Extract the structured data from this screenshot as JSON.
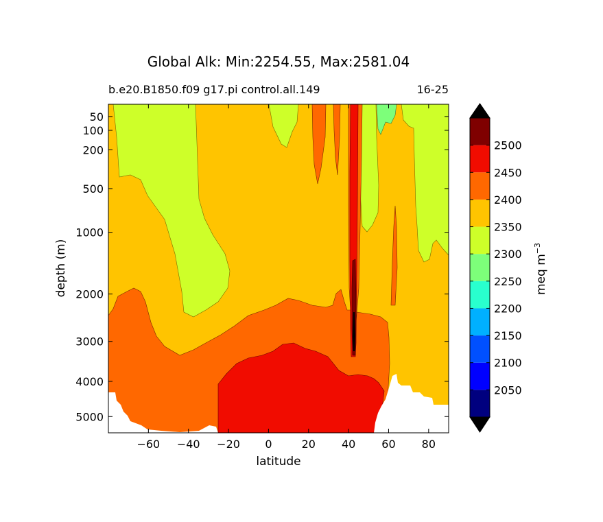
{
  "chart_data": {
    "type": "contourf",
    "title": "Global Alk: Min:2254.55, Max:2581.04",
    "subtitle_left": "b.e20.B1850.f09 g17.pi control.all.149",
    "subtitle_right": "16-25",
    "xlabel": "latitude",
    "ylabel": "depth (m)",
    "xlim": [
      -80,
      90
    ],
    "x_ticks": [
      -60,
      -40,
      -20,
      0,
      20,
      40,
      60,
      80
    ],
    "x_tick_labels": [
      "−60",
      "−40",
      "−20",
      "0",
      "20",
      "40",
      "60",
      "80"
    ],
    "ylim_depth_m": [
      5500,
      20
    ],
    "y_ticks": [
      50,
      100,
      200,
      500,
      1000,
      2000,
      3000,
      4000,
      5000
    ],
    "y_tick_labels": [
      "50",
      "100",
      "200",
      "500",
      "1000",
      "2000",
      "3000",
      "4000",
      "5000"
    ],
    "colorbar": {
      "label": "meq m",
      "label_exponent": "−3",
      "extend": "both",
      "levels": [
        2000,
        2050,
        2100,
        2150,
        2200,
        2250,
        2300,
        2350,
        2400,
        2450,
        2500,
        2550
      ],
      "tick_labels": [
        "2050",
        "2100",
        "2150",
        "2200",
        "2250",
        "2300",
        "2350",
        "2400",
        "2450",
        "2500"
      ],
      "colors": [
        "#00007f",
        "#0000ff",
        "#0050ff",
        "#00b0ff",
        "#29ffce",
        "#7dff7a",
        "#ceff29",
        "#ffc400",
        "#ff6800",
        "#f10c00",
        "#7f0000"
      ],
      "under_color": "#000000",
      "over_color": "#000000"
    },
    "regions": [
      {
        "name": "2300-2350 band",
        "color": "#ceff29"
      },
      {
        "name": "2350-2400 band",
        "color": "#ffc400"
      },
      {
        "name": "2400-2450 band",
        "color": "#ff6800"
      },
      {
        "name": "2450-2500 band",
        "color": "#f10c00"
      },
      {
        "name": "2500-2550 band",
        "color": "#7f0000"
      },
      {
        "name": "2550+ band",
        "color": "#000000"
      },
      {
        "name": "2250-2300 band",
        "color": "#7dff7a"
      },
      {
        "name": "land / no data",
        "color": "#ffffff"
      }
    ]
  }
}
